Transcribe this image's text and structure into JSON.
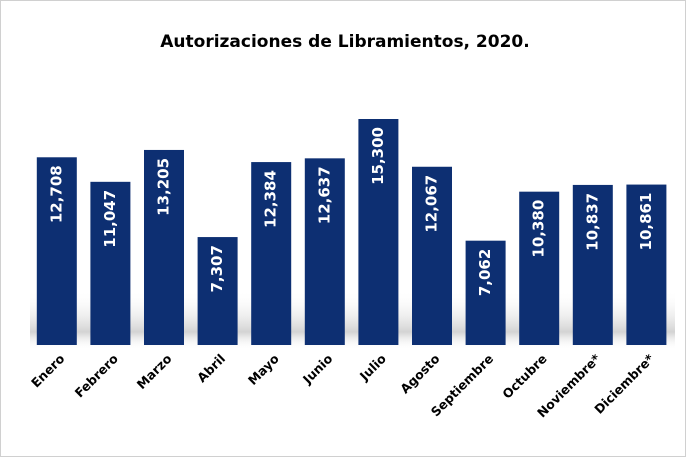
{
  "chart_data": {
    "type": "bar",
    "title": "Autorizaciones de Libramientos, 2020.",
    "categories": [
      "Enero",
      "Febrero",
      "Marzo",
      "Abril",
      "Mayo",
      "Junio",
      "Julio",
      "Agosto",
      "Septiembre",
      "Octubre",
      "Noviembre*",
      "Diciembre*"
    ],
    "values": [
      12708,
      11047,
      13205,
      7307,
      12384,
      12637,
      15300,
      12067,
      7062,
      10380,
      10837,
      10861
    ],
    "value_labels": [
      "12,708",
      "11,047",
      "13,205",
      "7,307",
      "12,384",
      "12,637",
      "15,300",
      "12,067",
      "7,062",
      "10,380",
      "10,837",
      "10,861"
    ],
    "color": "#0d2f72"
  }
}
